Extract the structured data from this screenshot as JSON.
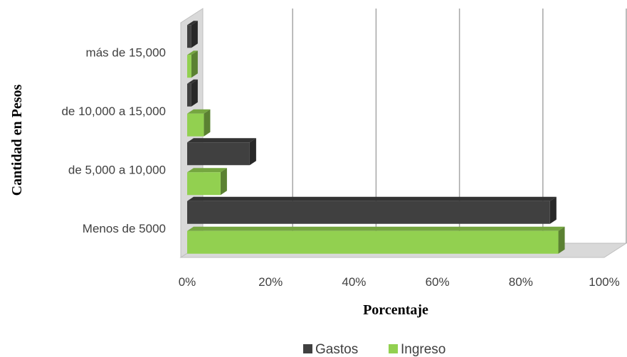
{
  "chart_data": {
    "type": "bar",
    "orientation": "horizontal",
    "three_d": true,
    "categories": [
      "Menos de 5000",
      "de 5,000 a 10,000",
      "de 10,000 a 15,000",
      "más de 15,000"
    ],
    "series": [
      {
        "name": "Gastos",
        "values": [
          87,
          15,
          1,
          1
        ],
        "color": "#404040"
      },
      {
        "name": "Ingreso",
        "values": [
          89,
          8,
          4,
          1
        ],
        "color": "#92d050"
      }
    ],
    "xlabel": "Porcentaje",
    "ylabel": "Cantidad en Pesos",
    "xlim": [
      0,
      100
    ],
    "x_ticks": [
      "0%",
      "20%",
      "40%",
      "60%",
      "80%",
      "100%"
    ],
    "grid": true,
    "legend": "bottom"
  }
}
